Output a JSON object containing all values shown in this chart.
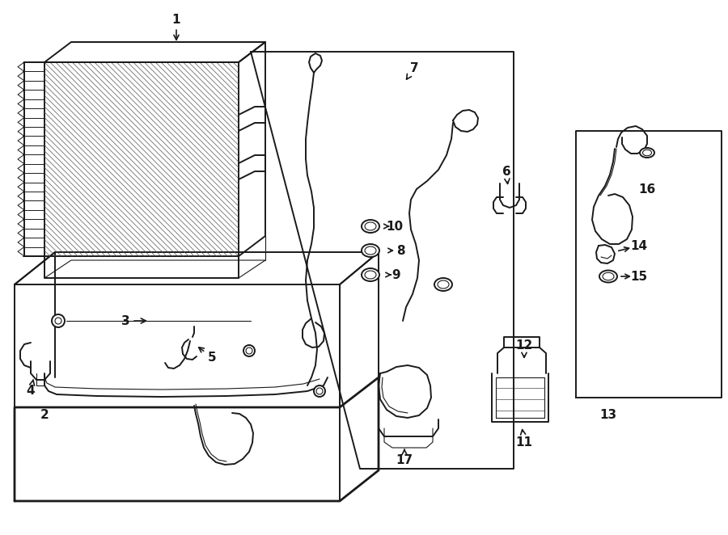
{
  "bg_color": "#ffffff",
  "line_color": "#1a1a1a",
  "lw_main": 1.4,
  "lw_thin": 0.8,
  "lw_thick": 2.0
}
